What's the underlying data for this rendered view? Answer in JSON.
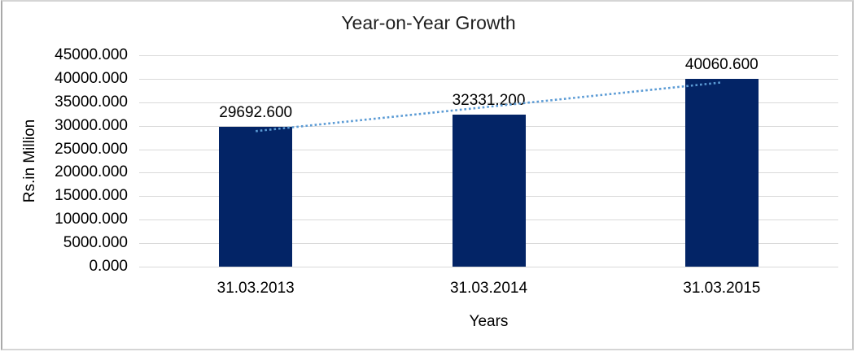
{
  "window": {
    "background": "#ffffff",
    "frame_border_color": "#c9c9c9"
  },
  "chart_data": {
    "type": "bar",
    "title": "Year-on-Year Growth",
    "xlabel": "Years",
    "ylabel": "Rs.in Million",
    "categories": [
      "31.03.2013",
      "31.03.2014",
      "31.03.2015"
    ],
    "values": [
      29692.6,
      32331.2,
      40060.6
    ],
    "value_labels": [
      "29692.600",
      "32331.200",
      "40060.600"
    ],
    "ylim": [
      0,
      45000
    ],
    "ytick_step": 5000,
    "ytick_labels": [
      "45000.000",
      "40000.000",
      "35000.000",
      "30000.000",
      "25000.000",
      "20000.000",
      "15000.000",
      "10000.000",
      "5000.000",
      "0.000"
    ],
    "grid": true,
    "legend": "none",
    "bar_color": "#032466",
    "gridline_color": "#d9d9d9",
    "trendline": {
      "type": "linear",
      "style": "dotted",
      "color": "#5b9bd5"
    }
  }
}
